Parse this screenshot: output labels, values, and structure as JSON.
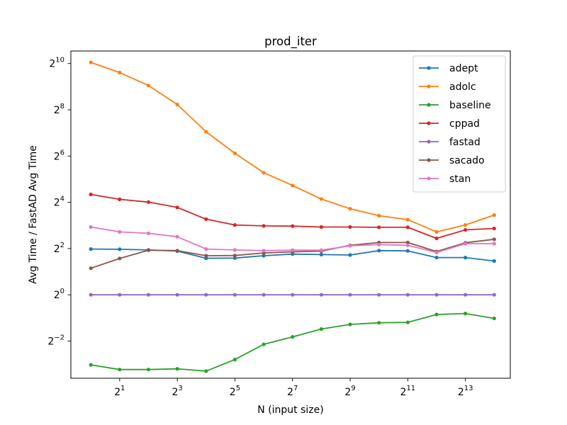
{
  "chart_data": {
    "type": "line",
    "title": "prod_iter",
    "xlabel": "N (input size)",
    "ylabel": "Avg Time / FastAD Avg Time",
    "xscale": "log2",
    "yscale": "log2",
    "x_exponents": [
      0,
      1,
      2,
      3,
      4,
      5,
      6,
      7,
      8,
      9,
      10,
      11,
      12,
      13,
      14
    ],
    "x_ticks": [
      {
        "base": "2",
        "exp": "1",
        "value": 2
      },
      {
        "base": "2",
        "exp": "3",
        "value": 8
      },
      {
        "base": "2",
        "exp": "5",
        "value": 32
      },
      {
        "base": "2",
        "exp": "7",
        "value": 128
      },
      {
        "base": "2",
        "exp": "9",
        "value": 512
      },
      {
        "base": "2",
        "exp": "11",
        "value": 2048
      },
      {
        "base": "2",
        "exp": "13",
        "value": 8192
      }
    ],
    "y_ticks": [
      {
        "base": "2",
        "exp": "−2",
        "value": 0.25
      },
      {
        "base": "2",
        "exp": "0",
        "value": 1
      },
      {
        "base": "2",
        "exp": "2",
        "value": 4
      },
      {
        "base": "2",
        "exp": "4",
        "value": 16
      },
      {
        "base": "2",
        "exp": "6",
        "value": 64
      },
      {
        "base": "2",
        "exp": "8",
        "value": 256
      },
      {
        "base": "2",
        "exp": "10",
        "value": 1024
      }
    ],
    "legend_position": "top-right",
    "grid": false,
    "series": [
      {
        "name": "adept",
        "color": "#1f77b4",
        "y_log2": [
          1.98,
          1.97,
          1.94,
          1.89,
          1.58,
          1.59,
          1.69,
          1.76,
          1.74,
          1.72,
          1.91,
          1.9,
          1.61,
          1.61,
          1.46
        ]
      },
      {
        "name": "adolc",
        "color": "#ff7f0e",
        "y_log2": [
          10.05,
          9.61,
          9.05,
          8.23,
          7.05,
          6.12,
          5.28,
          4.73,
          4.14,
          3.72,
          3.42,
          3.25,
          2.72,
          3.02,
          3.45
        ]
      },
      {
        "name": "baseline",
        "color": "#2ca02c",
        "y_log2": [
          -3.03,
          -3.23,
          -3.23,
          -3.2,
          -3.3,
          -2.8,
          -2.14,
          -1.82,
          -1.48,
          -1.28,
          -1.21,
          -1.19,
          -0.85,
          -0.81,
          -1.02
        ]
      },
      {
        "name": "cppad",
        "color": "#d62728",
        "y_log2": [
          4.34,
          4.13,
          4.01,
          3.78,
          3.27,
          3.02,
          2.98,
          2.97,
          2.93,
          2.93,
          2.92,
          2.92,
          2.44,
          2.81,
          2.87
        ]
      },
      {
        "name": "fastad",
        "color": "#9467bd",
        "y_log2": [
          0.0,
          0.0,
          0.0,
          0.0,
          0.0,
          0.0,
          0.0,
          0.0,
          0.0,
          0.0,
          0.0,
          0.0,
          0.0,
          0.0,
          0.0
        ]
      },
      {
        "name": "sacado",
        "color": "#8c564b",
        "y_log2": [
          1.15,
          1.57,
          1.93,
          1.91,
          1.69,
          1.7,
          1.81,
          1.86,
          1.89,
          2.14,
          2.26,
          2.26,
          1.87,
          2.25,
          2.4
        ]
      },
      {
        "name": "stan",
        "color": "#e377c2",
        "y_log2": [
          2.93,
          2.72,
          2.66,
          2.51,
          1.98,
          1.94,
          1.91,
          1.93,
          1.93,
          2.12,
          2.17,
          2.14,
          1.83,
          2.21,
          2.21
        ]
      }
    ]
  }
}
